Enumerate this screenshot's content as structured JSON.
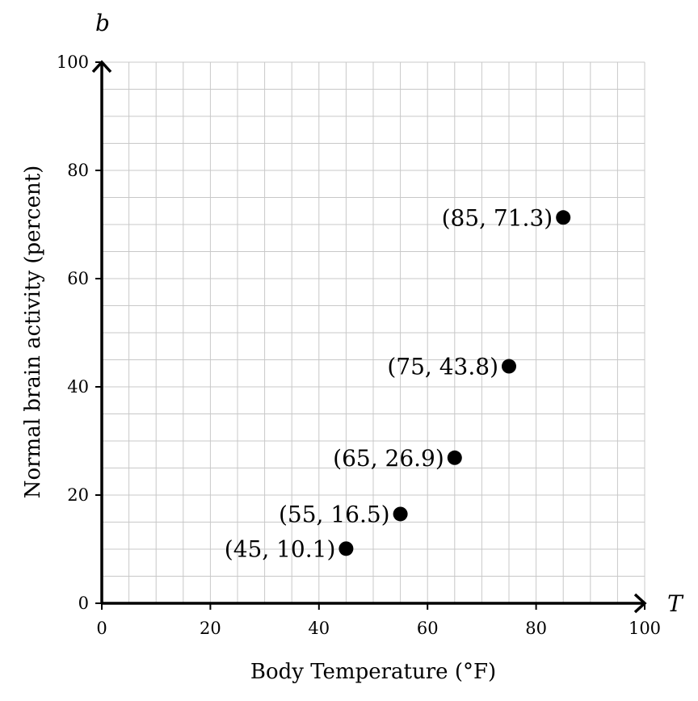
{
  "chart_data": {
    "type": "scatter",
    "title": "",
    "xlabel": "Body Temperature (°F)",
    "ylabel": "Normal brain activity (percent)",
    "x_var": "T",
    "y_var": "b",
    "xlim": [
      0,
      100
    ],
    "ylim": [
      0,
      100
    ],
    "x_major_ticks": [
      0,
      20,
      40,
      60,
      80,
      100
    ],
    "y_major_ticks": [
      0,
      20,
      40,
      60,
      80,
      100
    ],
    "grid": true,
    "grid_minor_step": 5,
    "point_color": "#000000",
    "points": [
      {
        "x": 45,
        "y": 10.1,
        "label": "(45, 10.1)"
      },
      {
        "x": 55,
        "y": 16.5,
        "label": "(55, 16.5)"
      },
      {
        "x": 65,
        "y": 26.9,
        "label": "(65, 26.9)"
      },
      {
        "x": 75,
        "y": 43.8,
        "label": "(75, 43.8)"
      },
      {
        "x": 85,
        "y": 71.3,
        "label": "(85, 71.3)"
      }
    ]
  }
}
